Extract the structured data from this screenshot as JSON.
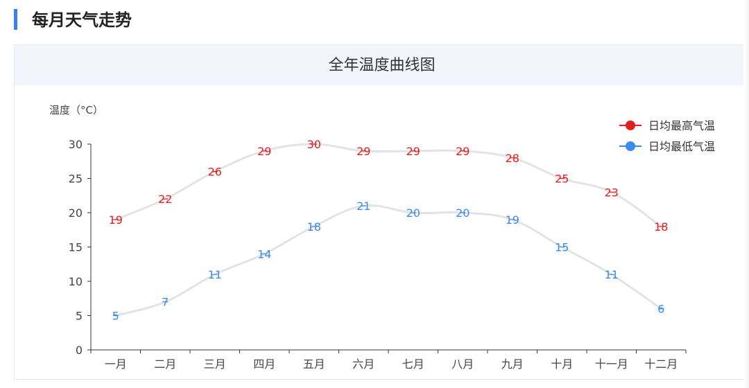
{
  "section": {
    "title": "每月天气走势",
    "accent_color": "#3b82e6"
  },
  "chart_data": {
    "type": "line",
    "title": "全年温度曲线图",
    "xlabel": "",
    "ylabel": "温度（°C）",
    "categories": [
      "一月",
      "二月",
      "三月",
      "四月",
      "五月",
      "六月",
      "七月",
      "八月",
      "九月",
      "十月",
      "十一月",
      "十二月"
    ],
    "ylim": [
      0,
      30
    ],
    "yticks": [
      0,
      5,
      10,
      15,
      20,
      25,
      30
    ],
    "grid": false,
    "smooth": true,
    "legend_position": "top-right",
    "series": [
      {
        "name": "日均最高气温",
        "color": "#e02020",
        "values": [
          19,
          22,
          26,
          29,
          30,
          29,
          29,
          29,
          28,
          25,
          23,
          18
        ]
      },
      {
        "name": "日均最低气温",
        "color": "#3b8beb",
        "values": [
          5,
          7,
          11,
          14,
          18,
          21,
          20,
          20,
          19,
          15,
          11,
          6
        ]
      }
    ]
  }
}
